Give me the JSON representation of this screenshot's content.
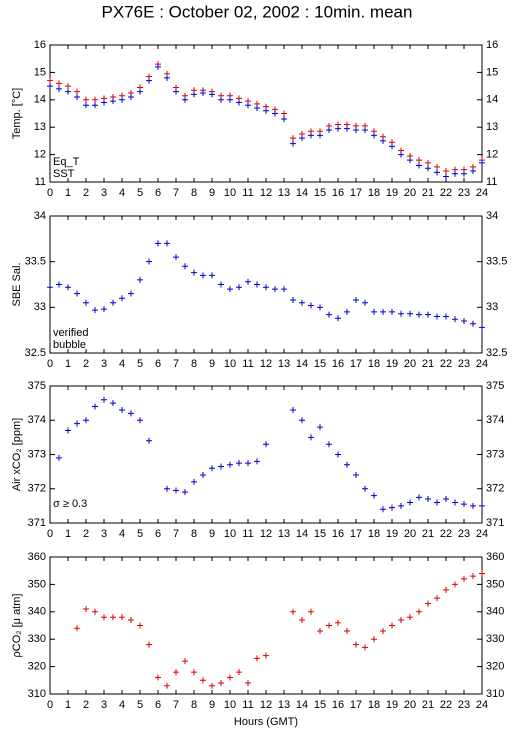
{
  "chart_data": [
    {
      "type": "scatter",
      "title": "PX76E : October 02, 2002 : 10min. mean",
      "ylabel": "Temp. [°C]",
      "x": [
        0,
        0.5,
        1,
        1.5,
        2,
        2.5,
        3,
        3.5,
        4,
        4.5,
        5,
        5.5,
        6,
        6.5,
        7,
        7.5,
        8,
        8.5,
        9,
        9.5,
        10,
        10.5,
        11,
        11.5,
        12,
        12.5,
        13,
        13.5,
        14,
        14.5,
        15,
        15.5,
        16,
        16.5,
        17,
        17.5,
        18,
        18.5,
        19,
        19.5,
        20,
        20.5,
        21,
        21.5,
        22,
        22.5,
        23,
        23.5,
        24
      ],
      "series": [
        {
          "name": "Eq_T",
          "color": "#dd0000",
          "values": [
            14.7,
            14.6,
            14.5,
            14.3,
            14.0,
            14.0,
            14.05,
            14.1,
            14.15,
            14.25,
            14.45,
            14.85,
            15.3,
            14.95,
            14.45,
            14.15,
            14.35,
            14.35,
            14.3,
            14.15,
            14.15,
            14.05,
            13.95,
            13.85,
            13.75,
            13.65,
            13.5,
            12.6,
            12.75,
            12.85,
            12.85,
            13.05,
            13.1,
            13.1,
            13.05,
            13.05,
            12.85,
            12.65,
            12.45,
            12.15,
            11.95,
            11.8,
            11.7,
            11.55,
            11.4,
            11.45,
            11.45,
            11.55,
            11.8
          ]
        },
        {
          "name": "SST",
          "color": "#0000cc",
          "values": [
            14.5,
            14.4,
            14.3,
            14.1,
            13.8,
            13.8,
            13.9,
            13.95,
            14.0,
            14.1,
            14.3,
            14.7,
            15.2,
            14.8,
            14.3,
            14.0,
            14.2,
            14.25,
            14.2,
            14.0,
            14.0,
            13.9,
            13.8,
            13.7,
            13.6,
            13.5,
            13.3,
            12.4,
            12.6,
            12.7,
            12.7,
            12.9,
            12.95,
            12.95,
            12.9,
            12.9,
            12.7,
            12.5,
            12.3,
            12.0,
            11.8,
            11.6,
            11.5,
            11.35,
            11.2,
            11.3,
            11.3,
            11.4,
            11.7
          ]
        }
      ],
      "xlim": [
        0,
        24
      ],
      "xticks": [
        0,
        1,
        2,
        3,
        4,
        5,
        6,
        7,
        8,
        9,
        10,
        11,
        12,
        13,
        14,
        15,
        16,
        17,
        18,
        19,
        20,
        21,
        22,
        23,
        24
      ],
      "ylim": [
        11,
        16
      ],
      "yticks": [
        11,
        12,
        13,
        14,
        15,
        16
      ]
    },
    {
      "type": "scatter",
      "ylabel": "SBE Sal.",
      "x": [
        0,
        0.5,
        1,
        1.5,
        2,
        2.5,
        3,
        3.5,
        4,
        4.5,
        5,
        5.5,
        6,
        6.5,
        7,
        7.5,
        8,
        8.5,
        9,
        9.5,
        10,
        10.5,
        11,
        11.5,
        12,
        12.5,
        13,
        13.5,
        14,
        14.5,
        15,
        15.5,
        16,
        16.5,
        17,
        17.5,
        18,
        18.5,
        19,
        19.5,
        20,
        20.5,
        21,
        21.5,
        22,
        22.5,
        23,
        23.5,
        24
      ],
      "series": [
        {
          "name": "verified",
          "color": "#0000cc",
          "values": [
            33.22,
            33.25,
            33.22,
            33.15,
            33.05,
            32.97,
            32.98,
            33.05,
            33.1,
            33.15,
            33.3,
            33.5,
            33.7,
            33.7,
            33.55,
            33.45,
            33.38,
            33.35,
            33.35,
            33.25,
            33.2,
            33.22,
            33.28,
            33.25,
            33.22,
            33.2,
            33.2,
            33.08,
            33.05,
            33.02,
            33.0,
            32.92,
            32.88,
            32.95,
            33.08,
            33.05,
            32.95,
            32.95,
            32.95,
            32.93,
            32.93,
            32.92,
            32.92,
            32.9,
            32.9,
            32.87,
            32.85,
            32.82,
            32.78
          ]
        },
        {
          "name": "bubble",
          "color": "#cc00cc",
          "values": [
            null,
            null,
            null,
            null,
            null,
            null,
            null,
            null,
            null,
            null,
            null,
            null,
            null,
            null,
            null,
            null,
            null,
            null,
            null,
            null,
            null,
            null,
            null,
            null,
            null,
            null,
            null,
            null,
            null,
            null,
            null,
            null,
            null,
            null,
            null,
            null,
            null,
            null,
            null,
            null,
            null,
            null,
            null,
            null,
            null,
            null,
            null,
            null,
            null
          ]
        }
      ],
      "xlim": [
        0,
        24
      ],
      "xticks": [
        0,
        1,
        2,
        3,
        4,
        5,
        6,
        7,
        8,
        9,
        10,
        11,
        12,
        13,
        14,
        15,
        16,
        17,
        18,
        19,
        20,
        21,
        22,
        23,
        24
      ],
      "ylim": [
        32.5,
        34
      ],
      "yticks": [
        32.5,
        33,
        33.5,
        34
      ]
    },
    {
      "type": "scatter",
      "ylabel": "Air xCO₂ [ppm]",
      "annotation": "σ ≥ 0.3",
      "annotation_color": "#cc00cc",
      "x": [
        0,
        0.5,
        1,
        1.5,
        2,
        2.5,
        3,
        3.5,
        4,
        4.5,
        5,
        5.5,
        6,
        6.5,
        7,
        7.5,
        8,
        8.5,
        9,
        9.5,
        10,
        10.5,
        11,
        11.5,
        12,
        12.5,
        13,
        13.5,
        14,
        14.5,
        15,
        15.5,
        16,
        16.5,
        17,
        17.5,
        18,
        18.5,
        19,
        19.5,
        20,
        20.5,
        21,
        21.5,
        22,
        22.5,
        23,
        23.5,
        24
      ],
      "series": [
        {
          "name": "Air xCO₂",
          "color": "#0000cc",
          "values": [
            null,
            372.9,
            373.7,
            373.9,
            374.0,
            374.4,
            374.6,
            374.5,
            374.3,
            374.2,
            374.0,
            373.4,
            null,
            372.0,
            371.95,
            371.9,
            372.2,
            372.4,
            372.6,
            372.65,
            372.7,
            372.75,
            372.75,
            372.8,
            373.3,
            null,
            null,
            374.3,
            374.0,
            373.5,
            373.8,
            373.3,
            373.0,
            372.7,
            372.4,
            372.0,
            371.8,
            371.4,
            371.45,
            371.5,
            371.6,
            371.75,
            371.7,
            371.6,
            371.7,
            371.6,
            371.55,
            371.5,
            371.5
          ]
        }
      ],
      "xlim": [
        0,
        24
      ],
      "xticks": [
        0,
        1,
        2,
        3,
        4,
        5,
        6,
        7,
        8,
        9,
        10,
        11,
        12,
        13,
        14,
        15,
        16,
        17,
        18,
        19,
        20,
        21,
        22,
        23,
        24
      ],
      "ylim": [
        371,
        375
      ],
      "yticks": [
        371,
        372,
        373,
        374,
        375
      ]
    },
    {
      "type": "scatter",
      "ylabel": "ρCO₂ [μ atm]",
      "xlabel": "Hours (GMT)",
      "x": [
        0,
        0.5,
        1,
        1.5,
        2,
        2.5,
        3,
        3.5,
        4,
        4.5,
        5,
        5.5,
        6,
        6.5,
        7,
        7.5,
        8,
        8.5,
        9,
        9.5,
        10,
        10.5,
        11,
        11.5,
        12,
        12.5,
        13,
        13.5,
        14,
        14.5,
        15,
        15.5,
        16,
        16.5,
        17,
        17.5,
        18,
        18.5,
        19,
        19.5,
        20,
        20.5,
        21,
        21.5,
        22,
        22.5,
        23,
        23.5,
        24
      ],
      "series": [
        {
          "name": "ρCO₂",
          "color": "#dd0000",
          "values": [
            null,
            null,
            null,
            334,
            341,
            340,
            338,
            338,
            338,
            337,
            335,
            328,
            316,
            313,
            318,
            322,
            318,
            315,
            313,
            314,
            316,
            318,
            314,
            323,
            324,
            null,
            null,
            340,
            337,
            340,
            333,
            335,
            336,
            333,
            328,
            327,
            330,
            333,
            335,
            337,
            338,
            340,
            343,
            345,
            348,
            350,
            352,
            353,
            354
          ]
        }
      ],
      "xlim": [
        0,
        24
      ],
      "xticks": [
        0,
        1,
        2,
        3,
        4,
        5,
        6,
        7,
        8,
        9,
        10,
        11,
        12,
        13,
        14,
        15,
        16,
        17,
        18,
        19,
        20,
        21,
        22,
        23,
        24
      ],
      "ylim": [
        310,
        360
      ],
      "yticks": [
        310,
        320,
        330,
        340,
        350,
        360
      ]
    }
  ]
}
